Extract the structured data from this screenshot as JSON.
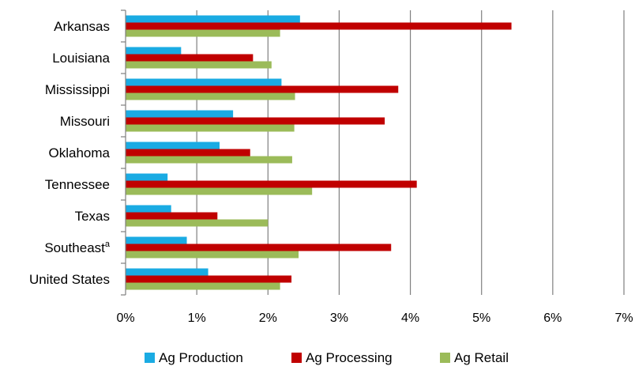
{
  "chart_data": {
    "type": "bar",
    "orientation": "horizontal",
    "categories": [
      "Arkansas",
      "Louisiana",
      "Mississippi",
      "Missouri",
      "Oklahoma",
      "Tennessee",
      "Texas",
      "Southeast",
      "United States"
    ],
    "category_superscripts": {
      "Southeast": "a"
    },
    "series": [
      {
        "name": "Ag Production",
        "color": "#1AABE3",
        "values": [
          2.45,
          0.78,
          2.19,
          1.51,
          1.32,
          0.59,
          0.64,
          0.86,
          1.16
        ]
      },
      {
        "name": "Ag Processing",
        "color": "#C00000",
        "values": [
          5.42,
          1.79,
          3.83,
          3.64,
          1.75,
          4.09,
          1.29,
          3.73,
          2.33
        ]
      },
      {
        "name": "Ag Retail",
        "color": "#9BBB59",
        "values": [
          2.17,
          2.05,
          2.38,
          2.37,
          2.34,
          2.62,
          2.0,
          2.43,
          2.17
        ]
      }
    ],
    "xlim": [
      0,
      7
    ],
    "xticks": [
      "0%",
      "1%",
      "2%",
      "3%",
      "4%",
      "5%",
      "6%",
      "7%"
    ],
    "grid": true,
    "legend_position": "bottom",
    "title": "",
    "xlabel": "",
    "ylabel": ""
  }
}
